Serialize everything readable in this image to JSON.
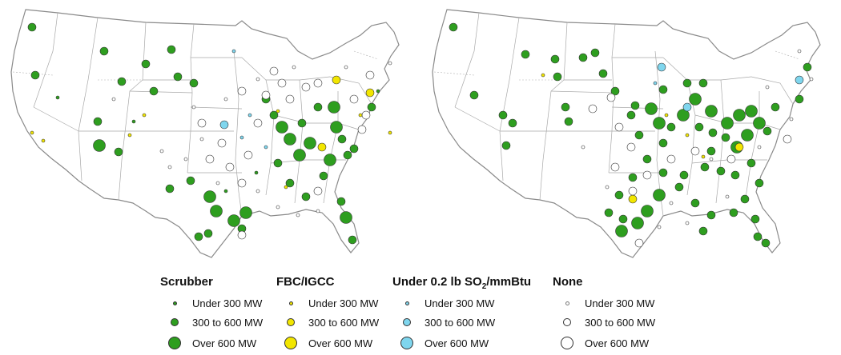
{
  "legend": {
    "groups": [
      {
        "title": "Scrubber",
        "color": "#2e9e1f",
        "items": [
          "Under 300 MW",
          "300 to 600 MW",
          "Over 600 MW"
        ]
      },
      {
        "title": "FBC/IGCC",
        "color": "#f2e600",
        "items": [
          "Under 300 MW",
          "300 to 600 MW",
          "Over 600 MW"
        ]
      },
      {
        "title_main": "Under 0.2 lb SO",
        "title_sub": "2",
        "title_tail": "/mmBtu",
        "color": "#7fd6ee",
        "items": [
          "Under 300 MW",
          "300 to 600 MW",
          "Over 600 MW"
        ]
      },
      {
        "title": "None",
        "color": "#ffffff",
        "items": [
          "Under 300 MW",
          "300 to 600 MW",
          "Over 600 MW"
        ]
      }
    ]
  },
  "colors": {
    "scrubber": "#2e9e1f",
    "fbc": "#f2e600",
    "lowsulfur": "#7fd6ee",
    "none": "#ffffff"
  },
  "maps": [
    {
      "id": "left",
      "plants": [
        [
          "s",
          2,
          38,
          30
        ],
        [
          "s",
          2,
          42,
          90
        ],
        [
          "s",
          1,
          70,
          118
        ],
        [
          "s",
          2,
          120,
          148
        ],
        [
          "s",
          2,
          128,
          60
        ],
        [
          "s",
          2,
          150,
          98
        ],
        [
          "s",
          3,
          122,
          178
        ],
        [
          "s",
          2,
          146,
          186
        ],
        [
          "s",
          2,
          180,
          76
        ],
        [
          "s",
          2,
          190,
          110
        ],
        [
          "s",
          1,
          165,
          148
        ],
        [
          "s",
          2,
          236,
          222
        ],
        [
          "s",
          3,
          260,
          242
        ],
        [
          "s",
          3,
          268,
          260
        ],
        [
          "s",
          3,
          290,
          272
        ],
        [
          "s",
          2,
          300,
          282
        ],
        [
          "s",
          2,
          258,
          288
        ],
        [
          "s",
          2,
          246,
          292
        ],
        [
          "s",
          3,
          305,
          262
        ],
        [
          "s",
          2,
          210,
          232
        ],
        [
          "s",
          2,
          212,
          58
        ],
        [
          "s",
          2,
          220,
          92
        ],
        [
          "s",
          2,
          240,
          100
        ],
        [
          "s",
          2,
          330,
          120
        ],
        [
          "s",
          3,
          350,
          155
        ],
        [
          "s",
          3,
          360,
          170
        ],
        [
          "s",
          2,
          375,
          150
        ],
        [
          "s",
          3,
          385,
          175
        ],
        [
          "s",
          2,
          395,
          130
        ],
        [
          "s",
          3,
          415,
          130
        ],
        [
          "s",
          3,
          418,
          155
        ],
        [
          "s",
          2,
          425,
          170
        ],
        [
          "s",
          2,
          432,
          190
        ],
        [
          "s",
          2,
          440,
          182
        ],
        [
          "s",
          3,
          410,
          196
        ],
        [
          "s",
          2,
          402,
          216
        ],
        [
          "s",
          2,
          424,
          248
        ],
        [
          "s",
          3,
          430,
          268
        ],
        [
          "s",
          2,
          438,
          296
        ],
        [
          "s",
          2,
          380,
          242
        ],
        [
          "s",
          2,
          360,
          225
        ],
        [
          "s",
          2,
          345,
          200
        ],
        [
          "s",
          1,
          280,
          235
        ],
        [
          "s",
          1,
          318,
          212
        ],
        [
          "s",
          2,
          462,
          130
        ],
        [
          "s",
          1,
          470,
          110
        ],
        [
          "s",
          2,
          340,
          140
        ],
        [
          "s",
          3,
          372,
          190
        ],
        [
          "f",
          1,
          38,
          162
        ],
        [
          "f",
          1,
          52,
          172
        ],
        [
          "f",
          1,
          160,
          165
        ],
        [
          "f",
          1,
          178,
          140
        ],
        [
          "f",
          2,
          400,
          180
        ],
        [
          "f",
          2,
          460,
          112
        ],
        [
          "f",
          1,
          448,
          140
        ],
        [
          "f",
          2,
          418,
          96
        ],
        [
          "f",
          1,
          355,
          230
        ],
        [
          "f",
          1,
          485,
          162
        ],
        [
          "f",
          1,
          345,
          135
        ],
        [
          "l",
          1,
          290,
          60
        ],
        [
          "l",
          2,
          278,
          152
        ],
        [
          "l",
          1,
          300,
          168
        ],
        [
          "l",
          1,
          310,
          140
        ],
        [
          "l",
          1,
          330,
          180
        ],
        [
          "n",
          2,
          250,
          150
        ],
        [
          "n",
          2,
          275,
          175
        ],
        [
          "n",
          2,
          320,
          150
        ],
        [
          "n",
          2,
          308,
          190
        ],
        [
          "n",
          2,
          350,
          100
        ],
        [
          "n",
          2,
          340,
          85
        ],
        [
          "n",
          2,
          360,
          120
        ],
        [
          "n",
          2,
          330,
          115
        ],
        [
          "n",
          2,
          300,
          110
        ],
        [
          "n",
          2,
          380,
          105
        ],
        [
          "n",
          2,
          395,
          100
        ],
        [
          "n",
          2,
          450,
          158
        ],
        [
          "n",
          2,
          455,
          140
        ],
        [
          "n",
          2,
          440,
          120
        ],
        [
          "n",
          1,
          200,
          185
        ],
        [
          "n",
          1,
          210,
          205
        ],
        [
          "n",
          1,
          230,
          195
        ],
        [
          "n",
          2,
          260,
          195
        ],
        [
          "n",
          2,
          285,
          205
        ],
        [
          "n",
          2,
          300,
          225
        ],
        [
          "n",
          1,
          320,
          235
        ],
        [
          "n",
          1,
          345,
          255
        ],
        [
          "n",
          1,
          370,
          265
        ],
        [
          "n",
          2,
          395,
          235
        ],
        [
          "n",
          1,
          395,
          260
        ],
        [
          "n",
          2,
          300,
          290
        ],
        [
          "n",
          1,
          270,
          225
        ],
        [
          "n",
          1,
          250,
          170
        ],
        [
          "n",
          1,
          240,
          130
        ],
        [
          "n",
          1,
          280,
          120
        ],
        [
          "n",
          1,
          320,
          95
        ],
        [
          "n",
          1,
          365,
          80
        ],
        [
          "n",
          2,
          460,
          90
        ],
        [
          "n",
          1,
          485,
          75
        ],
        [
          "n",
          1,
          430,
          80
        ],
        [
          "n",
          1,
          140,
          120
        ]
      ]
    },
    {
      "id": "right",
      "plants": [
        [
          "s",
          2,
          38,
          30
        ],
        [
          "s",
          2,
          64,
          115
        ],
        [
          "s",
          2,
          100,
          140
        ],
        [
          "s",
          2,
          104,
          178
        ],
        [
          "s",
          2,
          112,
          150
        ],
        [
          "s",
          2,
          128,
          64
        ],
        [
          "s",
          2,
          165,
          70
        ],
        [
          "s",
          2,
          168,
          92
        ],
        [
          "s",
          2,
          178,
          130
        ],
        [
          "s",
          2,
          182,
          148
        ],
        [
          "s",
          2,
          200,
          68
        ],
        [
          "s",
          2,
          215,
          62
        ],
        [
          "s",
          2,
          225,
          88
        ],
        [
          "s",
          2,
          240,
          110
        ],
        [
          "s",
          2,
          265,
          128
        ],
        [
          "s",
          2,
          260,
          140
        ],
        [
          "s",
          2,
          270,
          165
        ],
        [
          "s",
          3,
          285,
          132
        ],
        [
          "s",
          3,
          295,
          150
        ],
        [
          "s",
          2,
          300,
          175
        ],
        [
          "s",
          2,
          310,
          155
        ],
        [
          "s",
          3,
          325,
          140
        ],
        [
          "s",
          3,
          340,
          120
        ],
        [
          "s",
          2,
          330,
          100
        ],
        [
          "s",
          2,
          350,
          100
        ],
        [
          "s",
          3,
          360,
          135
        ],
        [
          "s",
          2,
          345,
          155
        ],
        [
          "s",
          3,
          380,
          150
        ],
        [
          "s",
          3,
          395,
          140
        ],
        [
          "s",
          3,
          410,
          135
        ],
        [
          "s",
          3,
          420,
          150
        ],
        [
          "s",
          2,
          430,
          160
        ],
        [
          "s",
          3,
          405,
          165
        ],
        [
          "s",
          3,
          392,
          180
        ],
        [
          "s",
          2,
          378,
          168
        ],
        [
          "s",
          2,
          362,
          162
        ],
        [
          "s",
          2,
          360,
          185
        ],
        [
          "s",
          2,
          352,
          205
        ],
        [
          "s",
          2,
          372,
          210
        ],
        [
          "s",
          2,
          390,
          215
        ],
        [
          "s",
          2,
          410,
          200
        ],
        [
          "s",
          2,
          420,
          225
        ],
        [
          "s",
          2,
          402,
          245
        ],
        [
          "s",
          2,
          388,
          262
        ],
        [
          "s",
          2,
          360,
          265
        ],
        [
          "s",
          2,
          340,
          250
        ],
        [
          "s",
          2,
          320,
          230
        ],
        [
          "s",
          2,
          300,
          212
        ],
        [
          "s",
          3,
          295,
          240
        ],
        [
          "s",
          3,
          280,
          260
        ],
        [
          "s",
          3,
          268,
          275
        ],
        [
          "s",
          2,
          250,
          270
        ],
        [
          "s",
          3,
          248,
          285
        ],
        [
          "s",
          2,
          232,
          262
        ],
        [
          "s",
          2,
          245,
          240
        ],
        [
          "s",
          2,
          262,
          218
        ],
        [
          "s",
          2,
          280,
          195
        ],
        [
          "s",
          2,
          300,
          108
        ],
        [
          "s",
          2,
          480,
          80
        ],
        [
          "s",
          2,
          470,
          120
        ],
        [
          "s",
          2,
          440,
          130
        ],
        [
          "s",
          2,
          418,
          292
        ],
        [
          "s",
          2,
          428,
          300
        ],
        [
          "s",
          2,
          415,
          270
        ],
        [
          "s",
          2,
          350,
          285
        ],
        [
          "s",
          2,
          326,
          215
        ],
        [
          "f",
          1,
          150,
          90
        ],
        [
          "f",
          1,
          304,
          140
        ],
        [
          "f",
          2,
          395,
          180
        ],
        [
          "f",
          1,
          330,
          165
        ],
        [
          "f",
          1,
          350,
          192
        ],
        [
          "f",
          2,
          262,
          245
        ],
        [
          "l",
          2,
          298,
          80
        ],
        [
          "l",
          2,
          330,
          130
        ],
        [
          "l",
          2,
          470,
          96
        ],
        [
          "l",
          1,
          290,
          100
        ],
        [
          "n",
          2,
          212,
          132
        ],
        [
          "n",
          2,
          235,
          118
        ],
        [
          "n",
          2,
          245,
          155
        ],
        [
          "n",
          2,
          260,
          180
        ],
        [
          "n",
          2,
          280,
          215
        ],
        [
          "n",
          2,
          310,
          195
        ],
        [
          "n",
          2,
          340,
          185
        ],
        [
          "n",
          1,
          360,
          195
        ],
        [
          "n",
          2,
          385,
          195
        ],
        [
          "n",
          2,
          240,
          205
        ],
        [
          "n",
          1,
          200,
          180
        ],
        [
          "n",
          1,
          230,
          230
        ],
        [
          "n",
          2,
          262,
          235
        ],
        [
          "n",
          1,
          310,
          250
        ],
        [
          "n",
          1,
          330,
          275
        ],
        [
          "n",
          2,
          270,
          300
        ],
        [
          "n",
          1,
          380,
          242
        ],
        [
          "n",
          1,
          420,
          180
        ],
        [
          "n",
          2,
          455,
          170
        ],
        [
          "n",
          1,
          460,
          145
        ],
        [
          "n",
          1,
          430,
          105
        ],
        [
          "n",
          1,
          470,
          60
        ],
        [
          "n",
          1,
          485,
          95
        ],
        [
          "n",
          1,
          295,
          280
        ]
      ]
    }
  ]
}
